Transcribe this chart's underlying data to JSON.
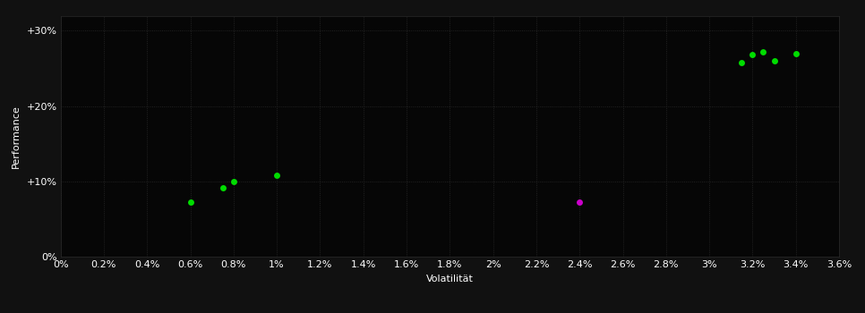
{
  "background_color": "#111111",
  "plot_bg_color": "#060606",
  "grid_color": "#2a2a2a",
  "text_color": "#ffffff",
  "xlabel": "Volatilität",
  "ylabel": "Performance",
  "xlim": [
    0.0,
    0.036
  ],
  "ylim": [
    0.0,
    0.32
  ],
  "xticks": [
    0.0,
    0.002,
    0.004,
    0.006,
    0.008,
    0.01,
    0.012,
    0.014,
    0.016,
    0.018,
    0.02,
    0.022,
    0.024,
    0.026,
    0.028,
    0.03,
    0.032,
    0.034,
    0.036
  ],
  "yticks": [
    0.0,
    0.1,
    0.2,
    0.3
  ],
  "ytick_labels": [
    "0%",
    "+10%",
    "+20%",
    "+30%"
  ],
  "xtick_labels": [
    "0%",
    "0.2%",
    "0.4%",
    "0.6%",
    "0.8%",
    "1%",
    "1.2%",
    "1.4%",
    "1.6%",
    "1.8%",
    "2%",
    "2.2%",
    "2.4%",
    "2.6%",
    "2.8%",
    "3%",
    "3.2%",
    "3.4%",
    "3.6%"
  ],
  "green_points_xy": [
    [
      0.006,
      0.073
    ],
    [
      0.0075,
      0.092
    ],
    [
      0.008,
      0.1
    ],
    [
      0.01,
      0.108
    ],
    [
      0.0315,
      0.258
    ],
    [
      0.032,
      0.268
    ],
    [
      0.0325,
      0.272
    ],
    [
      0.033,
      0.26
    ],
    [
      0.034,
      0.27
    ]
  ],
  "magenta_points_xy": [
    [
      0.024,
      0.073
    ]
  ],
  "dot_color_green": "#00dd00",
  "dot_color_magenta": "#cc00cc",
  "dot_size": 25,
  "tick_fontsize": 8,
  "label_fontsize": 8
}
